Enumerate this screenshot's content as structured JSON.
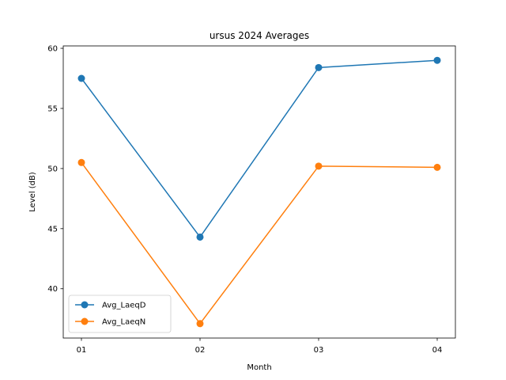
{
  "chart_data": {
    "type": "line",
    "title": "ursus 2024 Averages",
    "xlabel": "Month",
    "ylabel": "Level (dB)",
    "categories": [
      "01",
      "02",
      "03",
      "04"
    ],
    "ylim": [
      35.9,
      60.2
    ],
    "yticks": [
      "40",
      "45",
      "50",
      "55",
      "60"
    ],
    "grid": false,
    "legend_position": "lower-left",
    "series": [
      {
        "name": "Avg_LaeqD",
        "color": "#1f77b4",
        "values": [
          57.5,
          44.3,
          58.4,
          59.0
        ]
      },
      {
        "name": "Avg_LaeqN",
        "color": "#ff7f0e",
        "values": [
          50.5,
          37.1,
          50.2,
          50.1
        ]
      }
    ]
  }
}
